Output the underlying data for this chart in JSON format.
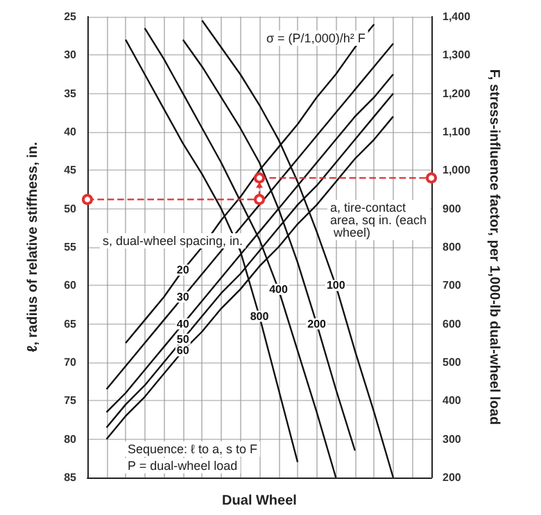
{
  "chart_data": {
    "type": "line",
    "xlabel": "Dual Wheel",
    "ylabel": "ℓ, radius of relative stiffness, in.",
    "y2label": "F, stress-influence factor, per 1,000-lb dual-wheel load",
    "annotations": [
      "σ = (P/1,000)/h² F",
      "s, dual-wheel spacing, in.",
      "a, tire-contact area, sq in. (each wheel)",
      "Sequence: ℓ to a, s to F",
      "P = dual-wheel load"
    ],
    "categories": [
      null,
      null,
      null,
      null,
      null,
      null,
      null,
      null,
      null,
      null,
      null,
      null,
      null,
      null,
      null,
      null,
      null,
      null,
      null
    ],
    "ylim": [
      85,
      25
    ],
    "yticks": [
      25,
      30,
      35,
      40,
      45,
      50,
      55,
      60,
      65,
      70,
      75,
      80,
      85
    ],
    "y2lim": [
      200,
      1400
    ],
    "y2ticks": [
      200,
      300,
      400,
      500,
      600,
      700,
      800,
      900,
      {
        "value": 1000,
        "label": "1,000"
      },
      {
        "value": 1100,
        "label": "1,100"
      },
      {
        "value": 1200,
        "label": "1,200"
      },
      {
        "value": 1300,
        "label": "1,300"
      },
      {
        "value": 1400,
        "label": "1,400"
      }
    ],
    "grid": true,
    "legend": false,
    "marker": "none",
    "line_style": "solid",
    "series": [
      {
        "name": "20",
        "color": "#111111",
        "axis": "y2",
        "values": [
          null,
          null,
          550,
          610,
          670,
          740,
          800,
          870,
          930,
          1000,
          1060,
          1120,
          1190,
          1250,
          1320,
          1380,
          null,
          null,
          null
        ]
      },
      {
        "name": "30",
        "color": "#111111",
        "axis": "y2",
        "values": [
          null,
          430,
          490,
          550,
          610,
          670,
          730,
          790,
          850,
          910,
          970,
          1030,
          1090,
          1150,
          1210,
          1270,
          1330,
          null,
          null
        ]
      },
      {
        "name": "40",
        "color": "#111111",
        "axis": "y2",
        "values": [
          null,
          370,
          420,
          480,
          540,
          600,
          660,
          720,
          780,
          840,
          900,
          960,
          1020,
          1080,
          1140,
          1190,
          1250,
          null,
          null
        ]
      },
      {
        "name": "50",
        "color": "#111111",
        "axis": "y2",
        "values": [
          null,
          330,
          390,
          440,
          500,
          560,
          620,
          680,
          730,
          790,
          850,
          910,
          960,
          1020,
          1080,
          1140,
          1200,
          null,
          null
        ]
      },
      {
        "name": "60",
        "color": "#111111",
        "axis": "y2",
        "values": [
          null,
          300,
          360,
          410,
          470,
          530,
          580,
          640,
          690,
          750,
          800,
          860,
          910,
          970,
          1030,
          1080,
          1140,
          null,
          null
        ]
      },
      {
        "name": "800",
        "color": "#111111",
        "axis": "y2",
        "values": [
          null,
          null,
          1340,
          1250,
          1160,
          1070,
          990,
          900,
          790,
          620,
          430,
          240,
          null,
          null,
          null,
          null,
          null,
          null,
          null
        ]
      },
      {
        "name": "400",
        "color": "#111111",
        "axis": "y2",
        "values": [
          null,
          null,
          null,
          1370,
          1290,
          1200,
          1110,
          1020,
          920,
          820,
          690,
          530,
          370,
          200,
          null,
          null,
          null,
          null,
          null
        ]
      },
      {
        "name": "200",
        "color": "#111111",
        "axis": "y2",
        "values": [
          null,
          null,
          null,
          null,
          null,
          1340,
          1270,
          1190,
          1110,
          1020,
          900,
          760,
          600,
          430,
          270,
          null,
          null,
          null,
          null
        ]
      },
      {
        "name": "100",
        "color": "#111111",
        "axis": "y2",
        "values": [
          null,
          null,
          null,
          null,
          null,
          null,
          1390,
          1320,
          1250,
          1170,
          1080,
          970,
          840,
          700,
          530,
          370,
          200,
          null,
          null
        ]
      },
      {
        "color": "#e03030",
        "axis": "y",
        "line_style": "dashed",
        "marker": "circle",
        "values": [
          48.8,
          null,
          null,
          null,
          null,
          null,
          null,
          null,
          null,
          48.8,
          null,
          null,
          null,
          null,
          null,
          null,
          null,
          null,
          null
        ]
      },
      {
        "color": "#e03030",
        "axis": "y2",
        "line_style": "dashed",
        "marker": "circle",
        "values": [
          null,
          null,
          null,
          null,
          null,
          null,
          null,
          null,
          null,
          980,
          null,
          null,
          null,
          null,
          null,
          null,
          null,
          null,
          980
        ]
      }
    ]
  }
}
